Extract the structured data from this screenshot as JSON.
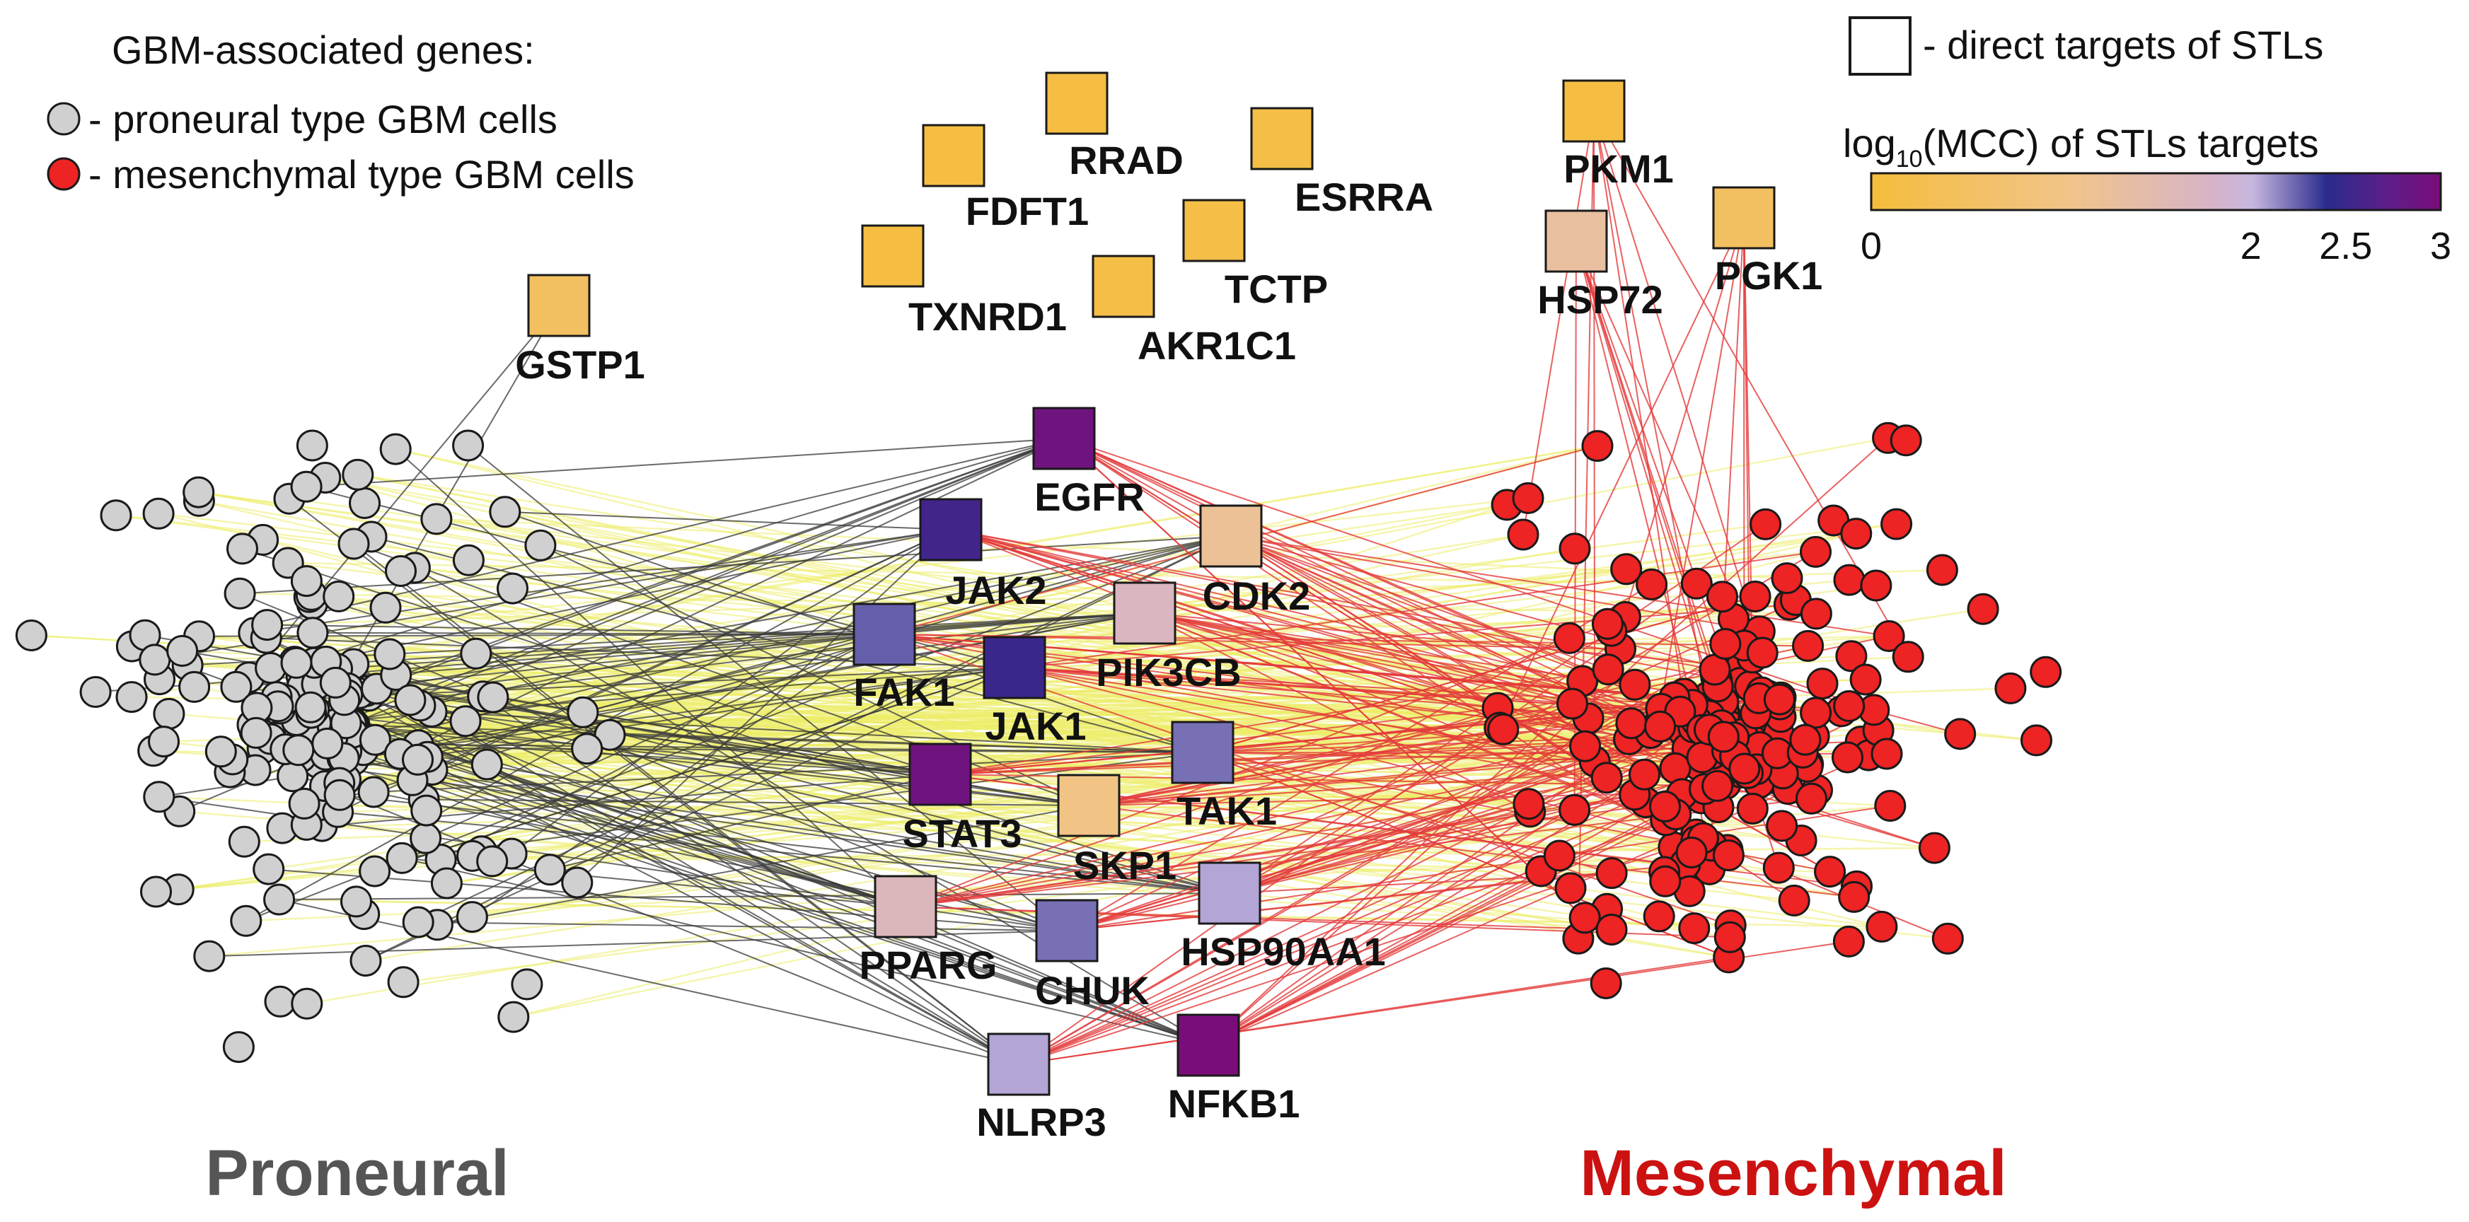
{
  "legend": {
    "title": "GBM-associated genes:",
    "proneural_label": "- proneural type GBM cells",
    "mesenchymal_label": "- mesenchymal type GBM cells",
    "direct_targets_label": "- direct targets of STLs",
    "colorbar_title_pre": "log",
    "colorbar_title_sub": "10",
    "colorbar_title_post": "(MCC) of STLs targets",
    "ticks": [
      "0",
      "2",
      "2.5",
      "3"
    ],
    "tick_values": [
      0,
      2,
      2.5,
      3
    ],
    "range": [
      0,
      3
    ]
  },
  "colors": {
    "proneural_fill": "#d0d0d0",
    "mesenchymal_fill": "#ee2323",
    "node_stroke": "#1a1a1a",
    "proneural_title": "#555555",
    "mesenchymal_title": "#cc1111",
    "edge_gray": "#3a3a3a",
    "edge_red": "#e43a3a",
    "edge_yellow": "#ecec6a",
    "scale": [
      "#f5bd3c",
      "#f1c48a",
      "#d6b4c8",
      "#c6b6df",
      "#2b2b8c",
      "#5a1f8a",
      "#7a0d79"
    ]
  },
  "groups": {
    "proneural": "Proneural",
    "mesenchymal": "Mesenchymal"
  },
  "targets": [
    {
      "name": "RRAD",
      "mcc": 0.1
    },
    {
      "name": "FDFT1",
      "mcc": 0.1
    },
    {
      "name": "ESRRA",
      "mcc": 0.15
    },
    {
      "name": "TXNRD1",
      "mcc": 0.1
    },
    {
      "name": "TCTP",
      "mcc": 0.15
    },
    {
      "name": "AKR1C1",
      "mcc": 0.15
    },
    {
      "name": "PKM1",
      "mcc": 0.1
    },
    {
      "name": "HSP72",
      "mcc": 1.3
    },
    {
      "name": "PGK1",
      "mcc": 0.5
    },
    {
      "name": "GSTP1",
      "mcc": 0.5
    },
    {
      "name": "EGFR",
      "mcc": 2.9
    },
    {
      "name": "JAK2",
      "mcc": 2.55
    },
    {
      "name": "CDK2",
      "mcc": 1.2
    },
    {
      "name": "FAK1",
      "mcc": 2.25
    },
    {
      "name": "PIK3CB",
      "mcc": 1.7
    },
    {
      "name": "JAK1",
      "mcc": 2.5
    },
    {
      "name": "STAT3",
      "mcc": 2.9
    },
    {
      "name": "TAK1",
      "mcc": 2.2
    },
    {
      "name": "SKP1",
      "mcc": 1.0
    },
    {
      "name": "PPARG",
      "mcc": 1.65
    },
    {
      "name": "CHUK",
      "mcc": 2.2
    },
    {
      "name": "HSP90AA1",
      "mcc": 2.05
    },
    {
      "name": "NLRP3",
      "mcc": 2.05
    },
    {
      "name": "NFKB1",
      "mcc": 3.0
    }
  ]
}
